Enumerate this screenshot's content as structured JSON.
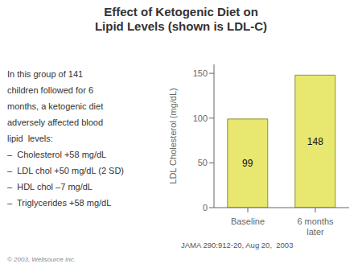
{
  "chart_data": {
    "type": "bar",
    "title": "Effect of Ketogenic Diet on\nLipid Levels (shown is LDL-C)",
    "categories": [
      "Baseline",
      "6 months\nlater"
    ],
    "values": [
      99,
      148
    ],
    "color": "#e8e870",
    "ylabel": "LDL Cholesterol (mg/dL)",
    "ylim": [
      0,
      160
    ],
    "yticks": [
      0,
      50,
      100,
      150
    ],
    "grid": false,
    "data_labels": true,
    "annotations": [
      "In this group of 141",
      "children followed for 6",
      "months, a ketogenic diet",
      "adversely affected blood",
      "lipid  levels:",
      "–  Cholesterol +58 mg/dL",
      "–  LDL chol +50 mg/dL (2 SD)",
      "–  HDL chol –7 mg/dL",
      "–  Triglycerides +58 mg/dL",
      "© 2003, Wellsource Inc.",
      "JAMA 290:912-20, Aug 20,  2003"
    ]
  }
}
